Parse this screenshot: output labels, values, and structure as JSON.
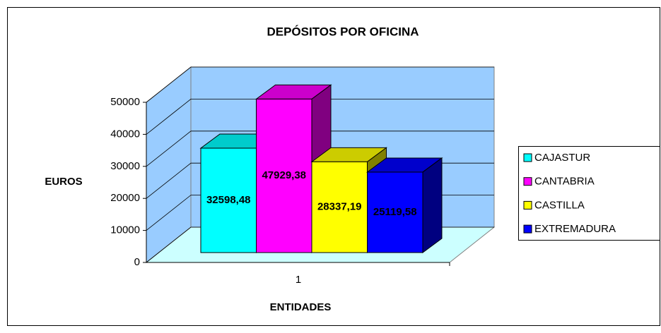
{
  "chart_data": {
    "type": "bar3d",
    "title": "DEPÓSITOS POR OFICINA",
    "y_label": "EUROS",
    "x_label": "ENTIDADES",
    "categories": [
      "1"
    ],
    "series": [
      {
        "name": "CAJASTUR",
        "color": "#00ffff",
        "values": [
          32598.48
        ],
        "value_labels": [
          "32598,48"
        ]
      },
      {
        "name": "CANTABRIA",
        "color": "#ff00ff",
        "values": [
          47929.38
        ],
        "value_labels": [
          "47929,38"
        ]
      },
      {
        "name": "CASTILLA",
        "color": "#ffff00",
        "values": [
          28337.19
        ],
        "value_labels": [
          "28337,19"
        ]
      },
      {
        "name": "EXTREMADURA",
        "color": "#0000ff",
        "values": [
          25119.58
        ],
        "value_labels": [
          "25119,58"
        ]
      }
    ],
    "ylim": [
      0,
      50000
    ],
    "yticks": [
      0,
      10000,
      20000,
      30000,
      40000,
      50000
    ],
    "grid": true,
    "legend": "right"
  }
}
